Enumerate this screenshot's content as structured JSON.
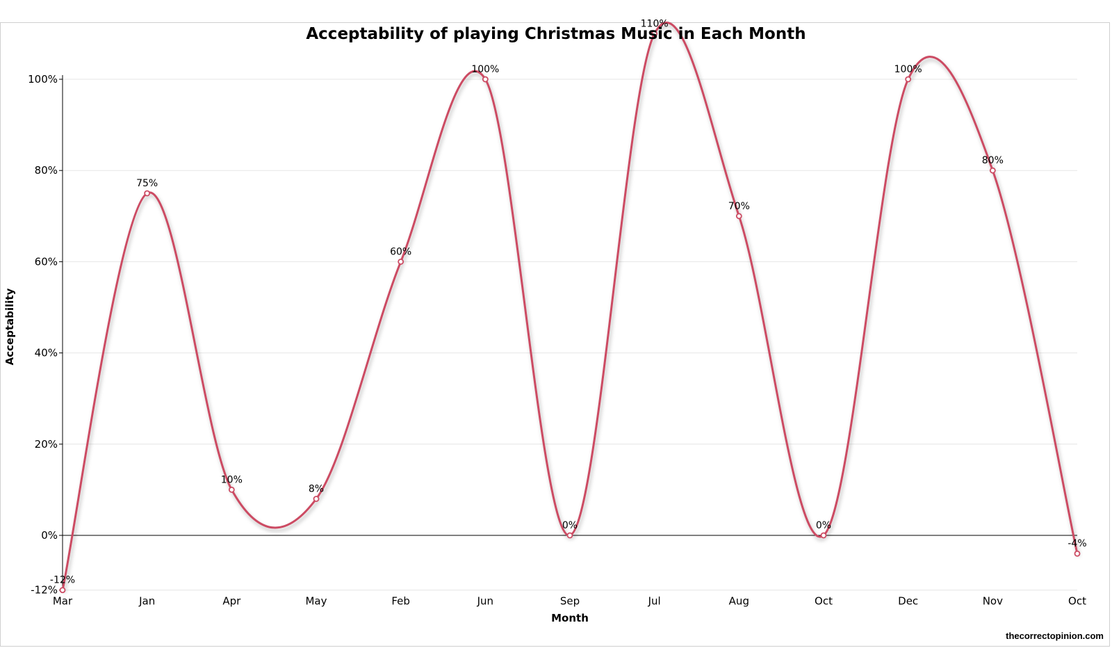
{
  "chart_data": {
    "type": "line",
    "title": "Acceptability of playing Christmas Music in Each Month",
    "xlabel": "Month",
    "ylabel": "Acceptability",
    "categories": [
      "Mar",
      "Jan",
      "Apr",
      "May",
      "Feb",
      "Jun",
      "Sep",
      "Jul",
      "Aug",
      "Oct",
      "Dec",
      "Nov",
      "Oct"
    ],
    "series": [
      {
        "values": [
          -12,
          75,
          10,
          8,
          60,
          100,
          0,
          110,
          70,
          0,
          100,
          80,
          -4
        ]
      }
    ],
    "data_labels": [
      "-12%",
      "75%",
      "10%",
      "8%",
      "60%",
      "100%",
      "0%",
      "110%",
      "70%",
      "0%",
      "100%",
      "80%",
      "-4%"
    ],
    "yticks": [
      -12,
      0,
      20,
      40,
      60,
      80,
      100
    ],
    "ytick_labels": [
      "-12%",
      "0%",
      "20%",
      "40%",
      "60%",
      "80%",
      "100%"
    ],
    "ylim": [
      -12,
      100
    ],
    "grid": true,
    "line_color": "#cc4b63"
  },
  "watermark": "thecorrectopinion.com"
}
